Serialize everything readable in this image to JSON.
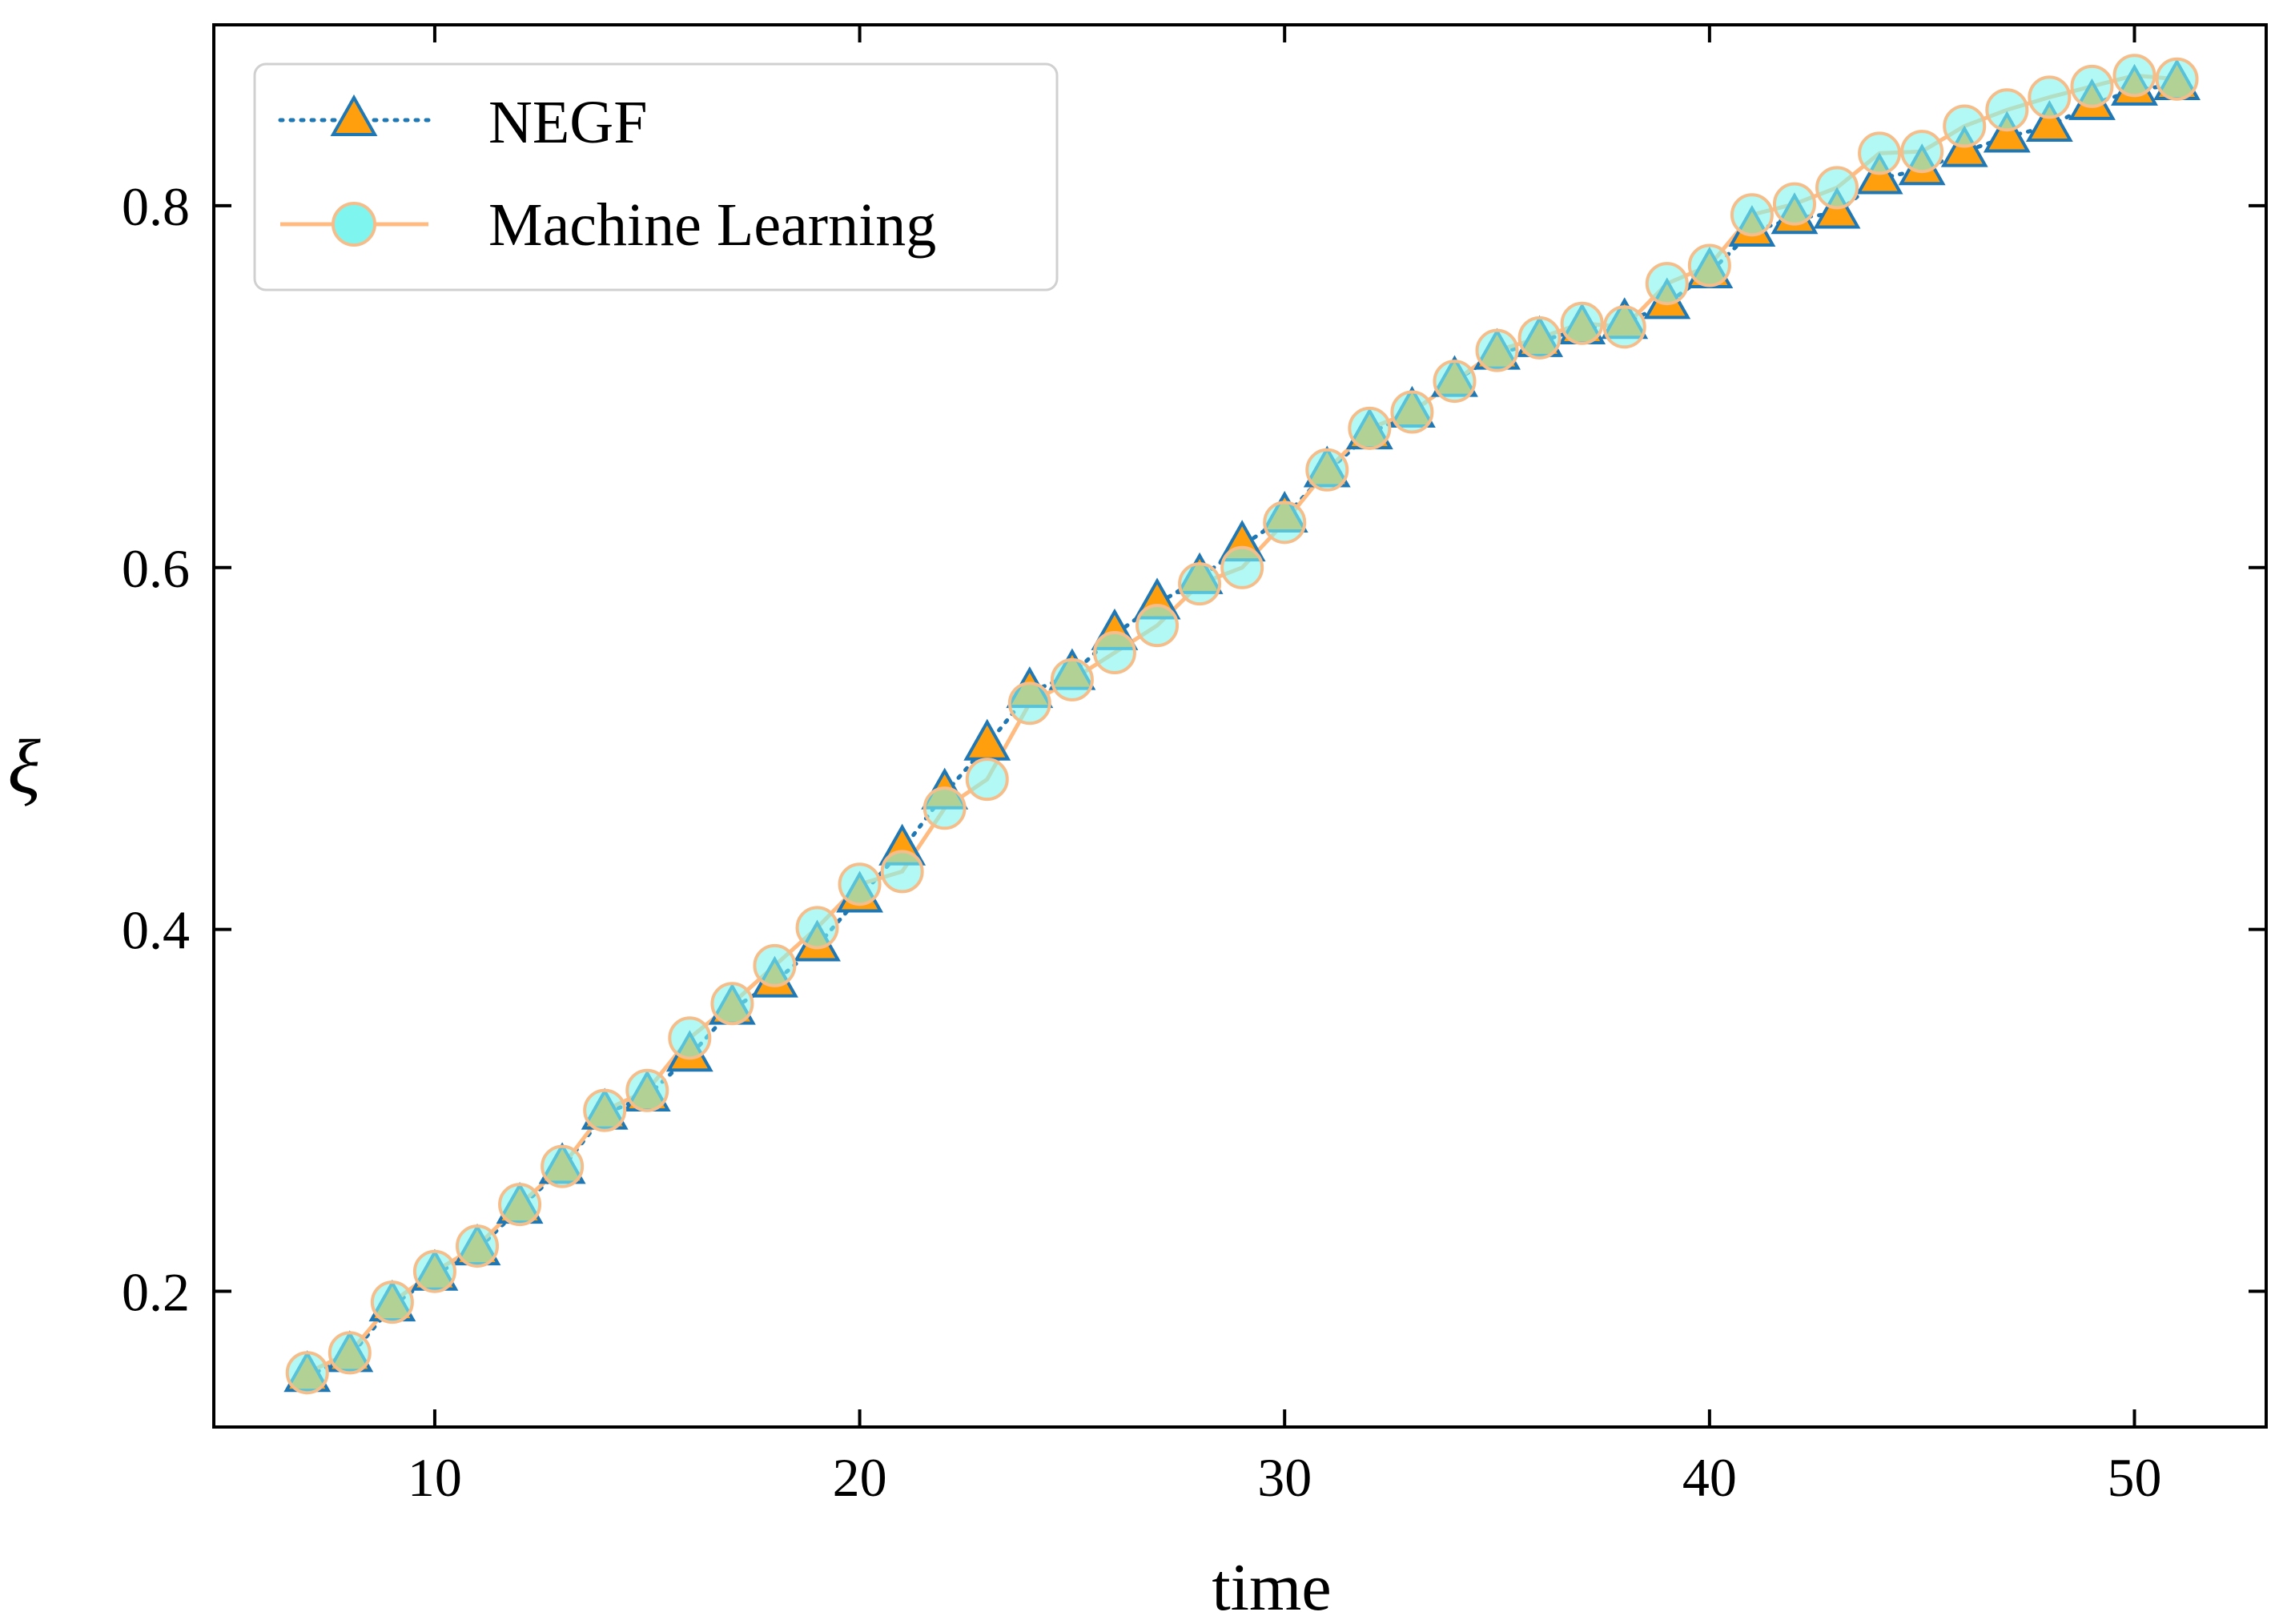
{
  "chart_data": {
    "type": "line",
    "title": "",
    "xlabel": "time",
    "ylabel": "ξ",
    "xlim": [
      4.8,
      53.1
    ],
    "ylim": [
      0.125,
      0.9
    ],
    "xticks": [
      10,
      20,
      30,
      40,
      50
    ],
    "xtick_labels": [
      "10",
      "20",
      "30",
      "40",
      "50"
    ],
    "yticks": [
      0.2,
      0.4,
      0.6,
      0.8
    ],
    "ytick_labels": [
      "0.2",
      "0.4",
      "0.6",
      "0.8"
    ],
    "grid": false,
    "legend_position": "top-left",
    "x": [
      7,
      8,
      9,
      10,
      11,
      12,
      13,
      14,
      15,
      16,
      17,
      18,
      19,
      20,
      21,
      22,
      23,
      24,
      25,
      26,
      27,
      28,
      29,
      30,
      31,
      32,
      33,
      34,
      35,
      36,
      37,
      38,
      39,
      40,
      41,
      42,
      43,
      44,
      45,
      46,
      47,
      48,
      49,
      50,
      51
    ],
    "series": [
      {
        "name": "NEGF",
        "marker": "triangle",
        "line_style": "dotted",
        "line_color": "#1f77b4",
        "marker_fill": "#ff9f0e",
        "marker_edge": "#1f77b4",
        "values": [
          0.153,
          0.164,
          0.192,
          0.209,
          0.223,
          0.246,
          0.268,
          0.298,
          0.308,
          0.33,
          0.356,
          0.371,
          0.391,
          0.418,
          0.444,
          0.475,
          0.502,
          0.531,
          0.541,
          0.563,
          0.58,
          0.594,
          0.612,
          0.628,
          0.653,
          0.674,
          0.686,
          0.703,
          0.718,
          0.725,
          0.732,
          0.735,
          0.746,
          0.763,
          0.786,
          0.793,
          0.796,
          0.815,
          0.82,
          0.83,
          0.838,
          0.844,
          0.856,
          0.864,
          0.867
        ]
      },
      {
        "name": "Machine Learning",
        "marker": "circle",
        "line_style": "solid",
        "line_color": "#ffbb80",
        "marker_fill": "#7ff5f0",
        "marker_edge": "#f5bd8a",
        "values": [
          0.155,
          0.166,
          0.194,
          0.211,
          0.225,
          0.248,
          0.269,
          0.3,
          0.311,
          0.34,
          0.359,
          0.38,
          0.401,
          0.425,
          0.432,
          0.467,
          0.483,
          0.525,
          0.538,
          0.553,
          0.568,
          0.591,
          0.6,
          0.625,
          0.654,
          0.677,
          0.686,
          0.703,
          0.72,
          0.727,
          0.735,
          0.733,
          0.757,
          0.767,
          0.795,
          0.801,
          0.81,
          0.829,
          0.83,
          0.844,
          0.853,
          0.86,
          0.866,
          0.872,
          0.87
        ]
      }
    ]
  }
}
